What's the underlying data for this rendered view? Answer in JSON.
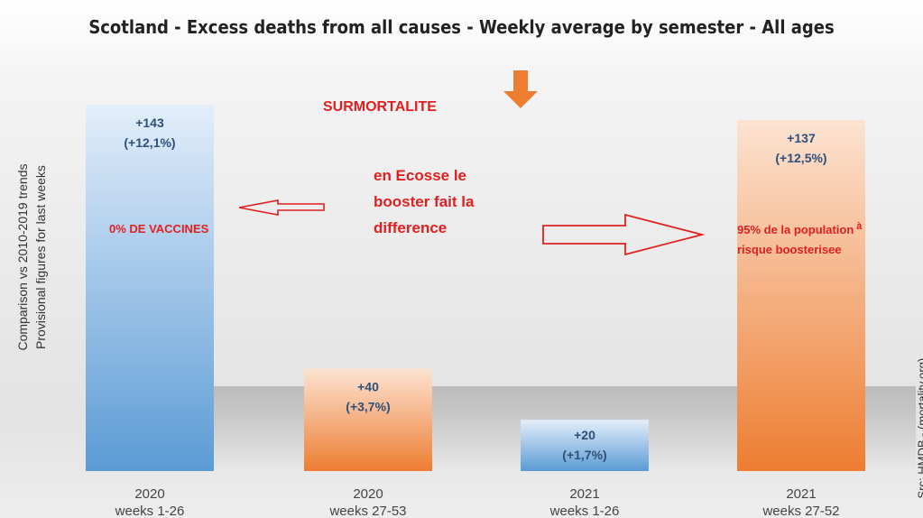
{
  "chart_data": {
    "type": "bar",
    "title": "Scotland - Excess deaths from all causes - Weekly average by semester - All ages",
    "ylabel": [
      "Comparison vs 2010-2019 trends",
      "Provisional figures for last weeks"
    ],
    "source": "Src: HMDB - (mortality.org)",
    "categories": [
      {
        "year": "2020",
        "weeks": "weeks 1-26"
      },
      {
        "year": "2020",
        "weeks": "weeks 27-53"
      },
      {
        "year": "2021",
        "weeks": "weeks 1-26"
      },
      {
        "year": "2021",
        "weeks": "weeks 27-52"
      }
    ],
    "values": [
      143,
      40,
      20,
      137
    ],
    "value_labels": [
      "+143",
      "+40",
      "+20",
      "+137"
    ],
    "percent_labels": [
      "(+12,1%)",
      "(+3,7%)",
      "(+1,7%)",
      "(+12,5%)"
    ],
    "bar_colors": [
      "#5b9bd5",
      "#ed7d31",
      "#5b9bd5",
      "#ed7d31"
    ],
    "ylim": [
      0,
      150
    ],
    "grid": false,
    "legend": "none"
  },
  "annotations": {
    "surmortalite": "SURMORTALITE",
    "zero_vaccines": "0% DE VACCINES",
    "middle_text": [
      "en Ecosse le",
      "booster fait la",
      "difference"
    ],
    "right_text_1": "95%  de la population",
    "right_text_accent": "à",
    "right_text_2": "risque boosterisee"
  },
  "colors": {
    "annotation_red": "#e02020",
    "down_arrow": "#ed7d31",
    "label_blue": "#2f4f7a"
  }
}
